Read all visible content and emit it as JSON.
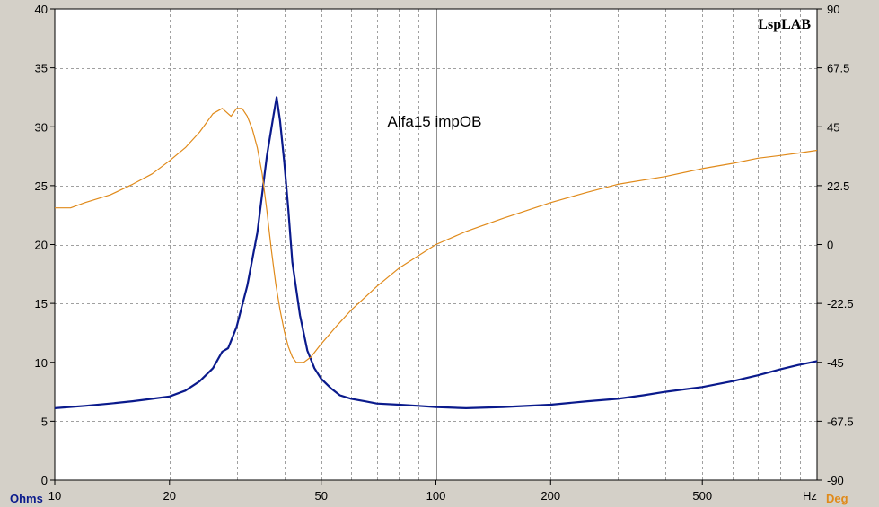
{
  "chart_data": {
    "type": "line",
    "title": "Alfa15 impOB",
    "brand": "LspLAB",
    "x_scale": "log",
    "xlim": [
      10,
      1000
    ],
    "x_ticks": [
      10,
      20,
      50,
      100,
      200,
      500
    ],
    "x_tick_labels": [
      "10",
      "20",
      "50",
      "100",
      "200",
      "500"
    ],
    "x_unit": "Hz",
    "y_left": {
      "unit": "Ohms",
      "lim": [
        0,
        40
      ],
      "ticks": [
        0,
        5,
        10,
        15,
        20,
        25,
        30,
        35,
        40
      ],
      "tick_labels": [
        "0",
        "5",
        "10",
        "15",
        "20",
        "25",
        "30",
        "35",
        "40"
      ]
    },
    "y_right": {
      "unit": "Deg",
      "lim": [
        -90,
        90
      ],
      "ticks": [
        -90,
        -67.5,
        -45,
        -22.5,
        0,
        22.5,
        45,
        67.5,
        90
      ],
      "tick_labels": [
        "-90",
        "-67.5",
        "-45",
        "-22.5",
        "0",
        "22.5",
        "45",
        "67.5",
        "90"
      ]
    },
    "grid": true,
    "series": [
      {
        "axis": "left",
        "color": "#0a1a8c",
        "x": [
          10,
          12,
          14,
          16,
          18,
          20,
          22,
          24,
          26,
          27.5,
          28.5,
          30,
          32,
          34,
          36,
          37.5,
          38.2,
          39,
          40,
          41,
          42,
          44,
          46,
          48,
          50,
          53,
          56,
          60,
          65,
          70,
          80,
          90,
          100,
          120,
          150,
          200,
          250,
          300,
          350,
          400,
          500,
          600,
          700,
          800,
          900,
          1000
        ],
        "values": [
          6.1,
          6.3,
          6.5,
          6.7,
          6.9,
          7.1,
          7.6,
          8.4,
          9.5,
          10.9,
          11.2,
          13.0,
          16.5,
          21.0,
          27.5,
          31.0,
          32.5,
          30.5,
          27.0,
          23.0,
          18.5,
          14.0,
          11.0,
          9.5,
          8.6,
          7.8,
          7.2,
          6.9,
          6.7,
          6.5,
          6.4,
          6.3,
          6.2,
          6.1,
          6.2,
          6.4,
          6.7,
          6.9,
          7.2,
          7.5,
          7.9,
          8.4,
          8.9,
          9.4,
          9.8,
          10.1
        ]
      },
      {
        "axis": "right",
        "color": "#e08a1a",
        "x": [
          10,
          11,
          12,
          14,
          16,
          18,
          20,
          22,
          24,
          26,
          27.5,
          29,
          30,
          31,
          32,
          33,
          34,
          35,
          36,
          37,
          38,
          39,
          40,
          41,
          42,
          43,
          45,
          47,
          50,
          55,
          60,
          70,
          80,
          100,
          120,
          150,
          200,
          250,
          300,
          400,
          500,
          600,
          700,
          800,
          900,
          1000
        ],
        "values": [
          14,
          14,
          16,
          19,
          23,
          27,
          32,
          37,
          43,
          50,
          52,
          49,
          52,
          52,
          49,
          44,
          37,
          27,
          13,
          -2,
          -15,
          -25,
          -33,
          -39,
          -43,
          -45,
          -45,
          -43,
          -38,
          -31,
          -25,
          -16,
          -9,
          0,
          5,
          10,
          16,
          20,
          23,
          26,
          29,
          31,
          33,
          34,
          35,
          36
        ]
      }
    ]
  }
}
